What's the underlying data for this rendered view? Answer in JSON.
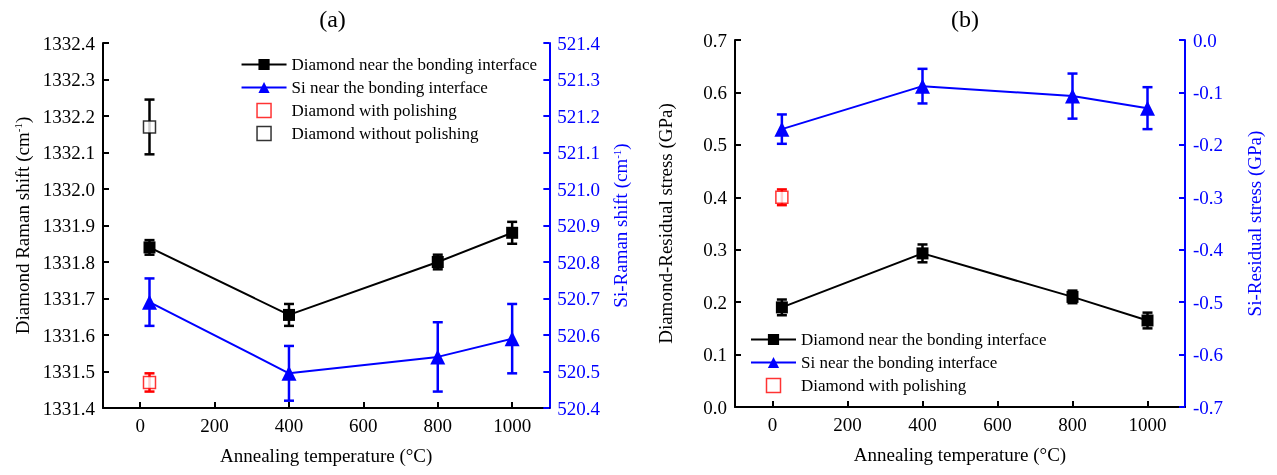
{
  "chart_data": [
    {
      "type": "line",
      "title": "(a)",
      "xlabel": "Annealing temperature (°C)",
      "ylabel": "Diamond Raman shift (cm$^{-1}$)",
      "y2label": "Si-Raman shift (cm$^{-1}$)",
      "xlim": [
        -100,
        1100
      ],
      "xticks": [
        0,
        200,
        400,
        600,
        800,
        1000
      ],
      "ylim": [
        1331.4,
        1332.4
      ],
      "yticks": [
        1331.4,
        1331.5,
        1331.6,
        1331.7,
        1331.8,
        1331.9,
        {
          "value": 1332.0,
          "label": "1332.0"
        },
        1332.1,
        1332.2,
        1332.3,
        1332.4
      ],
      "y2lim": [
        520.4,
        521.4
      ],
      "y2ticks": [
        520.4,
        520.5,
        520.6,
        520.7,
        520.8,
        520.9,
        {
          "value": 521.0,
          "label": "521.0"
        },
        521.1,
        521.2,
        521.3,
        521.4
      ],
      "legend": "top right",
      "grid": false,
      "series": [
        {
          "name": "Diamond near the bonding interface",
          "color": "#000000",
          "marker": "square",
          "x": [
            25,
            400,
            800,
            1000
          ],
          "values": [
            1331.84,
            1331.655,
            1331.8,
            1331.88
          ],
          "errors": [
            0.02,
            0.03,
            0.02,
            0.03
          ]
        },
        {
          "name": "Si near the bonding interface",
          "color": "#0000ff",
          "marker": "triangle",
          "axis": "y2",
          "x": [
            25,
            400,
            800,
            1000
          ],
          "values": [
            520.69,
            520.495,
            520.54,
            520.59
          ],
          "errors": [
            0.065,
            0.075,
            0.095,
            0.095
          ]
        },
        {
          "name": "Diamond with polishing",
          "type": "scatter",
          "color": "#ff0000",
          "marker": "square",
          "x": [
            25
          ],
          "values": [
            1331.47
          ],
          "errors": [
            0.025
          ]
        },
        {
          "name": "Diamond without polishing",
          "type": "scatter",
          "color": "#000000",
          "marker": "square",
          "x": [
            25
          ],
          "values": [
            1332.17
          ],
          "errors": [
            0.075
          ]
        }
      ]
    },
    {
      "type": "line",
      "title": "(b)",
      "xlabel": "Annealing temperature (°C)",
      "ylabel": "Diamond-Residual stress (GPa)",
      "y2label": "Si-Residual stress (GPa)",
      "xlim": [
        -100,
        1100
      ],
      "xticks": [
        0,
        200,
        400,
        600,
        800,
        1000
      ],
      "ylim": [
        0,
        0.7
      ],
      "yticks": [
        {
          "value": 0,
          "label": "0.0"
        },
        0.1,
        0.2,
        0.3,
        0.4,
        0.5,
        0.6,
        0.7
      ],
      "y2lim": [
        -0.7,
        0
      ],
      "y2ticks": [
        -0.7,
        -0.6,
        -0.5,
        -0.4,
        -0.3,
        -0.2,
        -0.1,
        {
          "value": 0,
          "label": "0.0"
        }
      ],
      "legend": "bottom left",
      "grid": false,
      "series": [
        {
          "name": "Diamond near the bonding interface",
          "color": "#000000",
          "marker": "square",
          "x": [
            25,
            400,
            800,
            1000
          ],
          "values": [
            0.19,
            0.293,
            0.21,
            0.165
          ],
          "errors": [
            0.015,
            0.017,
            0.012,
            0.015
          ]
        },
        {
          "name": "Si near the bonding interface",
          "color": "#0000ff",
          "marker": "triangle",
          "axis": "y2",
          "x": [
            25,
            400,
            800,
            1000
          ],
          "values": [
            -0.17,
            -0.088,
            -0.107,
            -0.13
          ],
          "errors": [
            0.028,
            0.033,
            0.043,
            0.04
          ]
        },
        {
          "name": "Diamond with polishing",
          "type": "scatter",
          "color": "#ff0000",
          "marker": "square",
          "x": [
            25
          ],
          "values": [
            0.4
          ],
          "errors": [
            0.015
          ]
        }
      ]
    }
  ]
}
